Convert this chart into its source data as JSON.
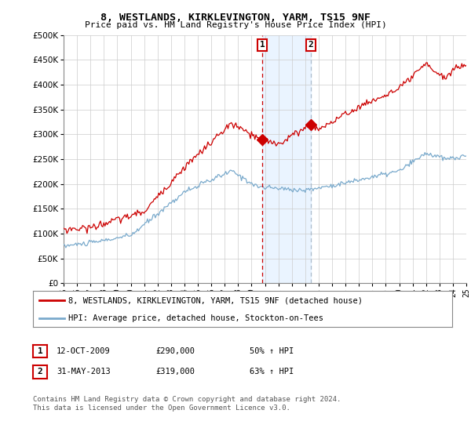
{
  "title_line1": "8, WESTLANDS, KIRKLEVINGTON, YARM, TS15 9NF",
  "title_line2": "Price paid vs. HM Land Registry's House Price Index (HPI)",
  "ytick_values": [
    0,
    50000,
    100000,
    150000,
    200000,
    250000,
    300000,
    350000,
    400000,
    450000,
    500000
  ],
  "ytick_labels": [
    "£0",
    "£50K",
    "£100K",
    "£150K",
    "£200K",
    "£250K",
    "£300K",
    "£350K",
    "£400K",
    "£450K",
    "£500K"
  ],
  "x_start_year": 1995,
  "x_end_year": 2025,
  "sale1_date": 2009.79,
  "sale1_price": 290000,
  "sale2_date": 2013.42,
  "sale2_price": 319000,
  "legend_line1": "8, WESTLANDS, KIRKLEVINGTON, YARM, TS15 9NF (detached house)",
  "legend_line2": "HPI: Average price, detached house, Stockton-on-Tees",
  "annotation1_date": "12-OCT-2009",
  "annotation1_price": "£290,000",
  "annotation1_hpi": "50% ↑ HPI",
  "annotation2_date": "31-MAY-2013",
  "annotation2_price": "£319,000",
  "annotation2_hpi": "63% ↑ HPI",
  "footnote": "Contains HM Land Registry data © Crown copyright and database right 2024.\nThis data is licensed under the Open Government Licence v3.0.",
  "line_color_red": "#cc0000",
  "line_color_blue": "#7aaacc",
  "shade_color": "#ddeeff",
  "vline1_color": "#cc0000",
  "vline2_color": "#aabbcc",
  "background_color": "#ffffff",
  "grid_color": "#cccccc"
}
